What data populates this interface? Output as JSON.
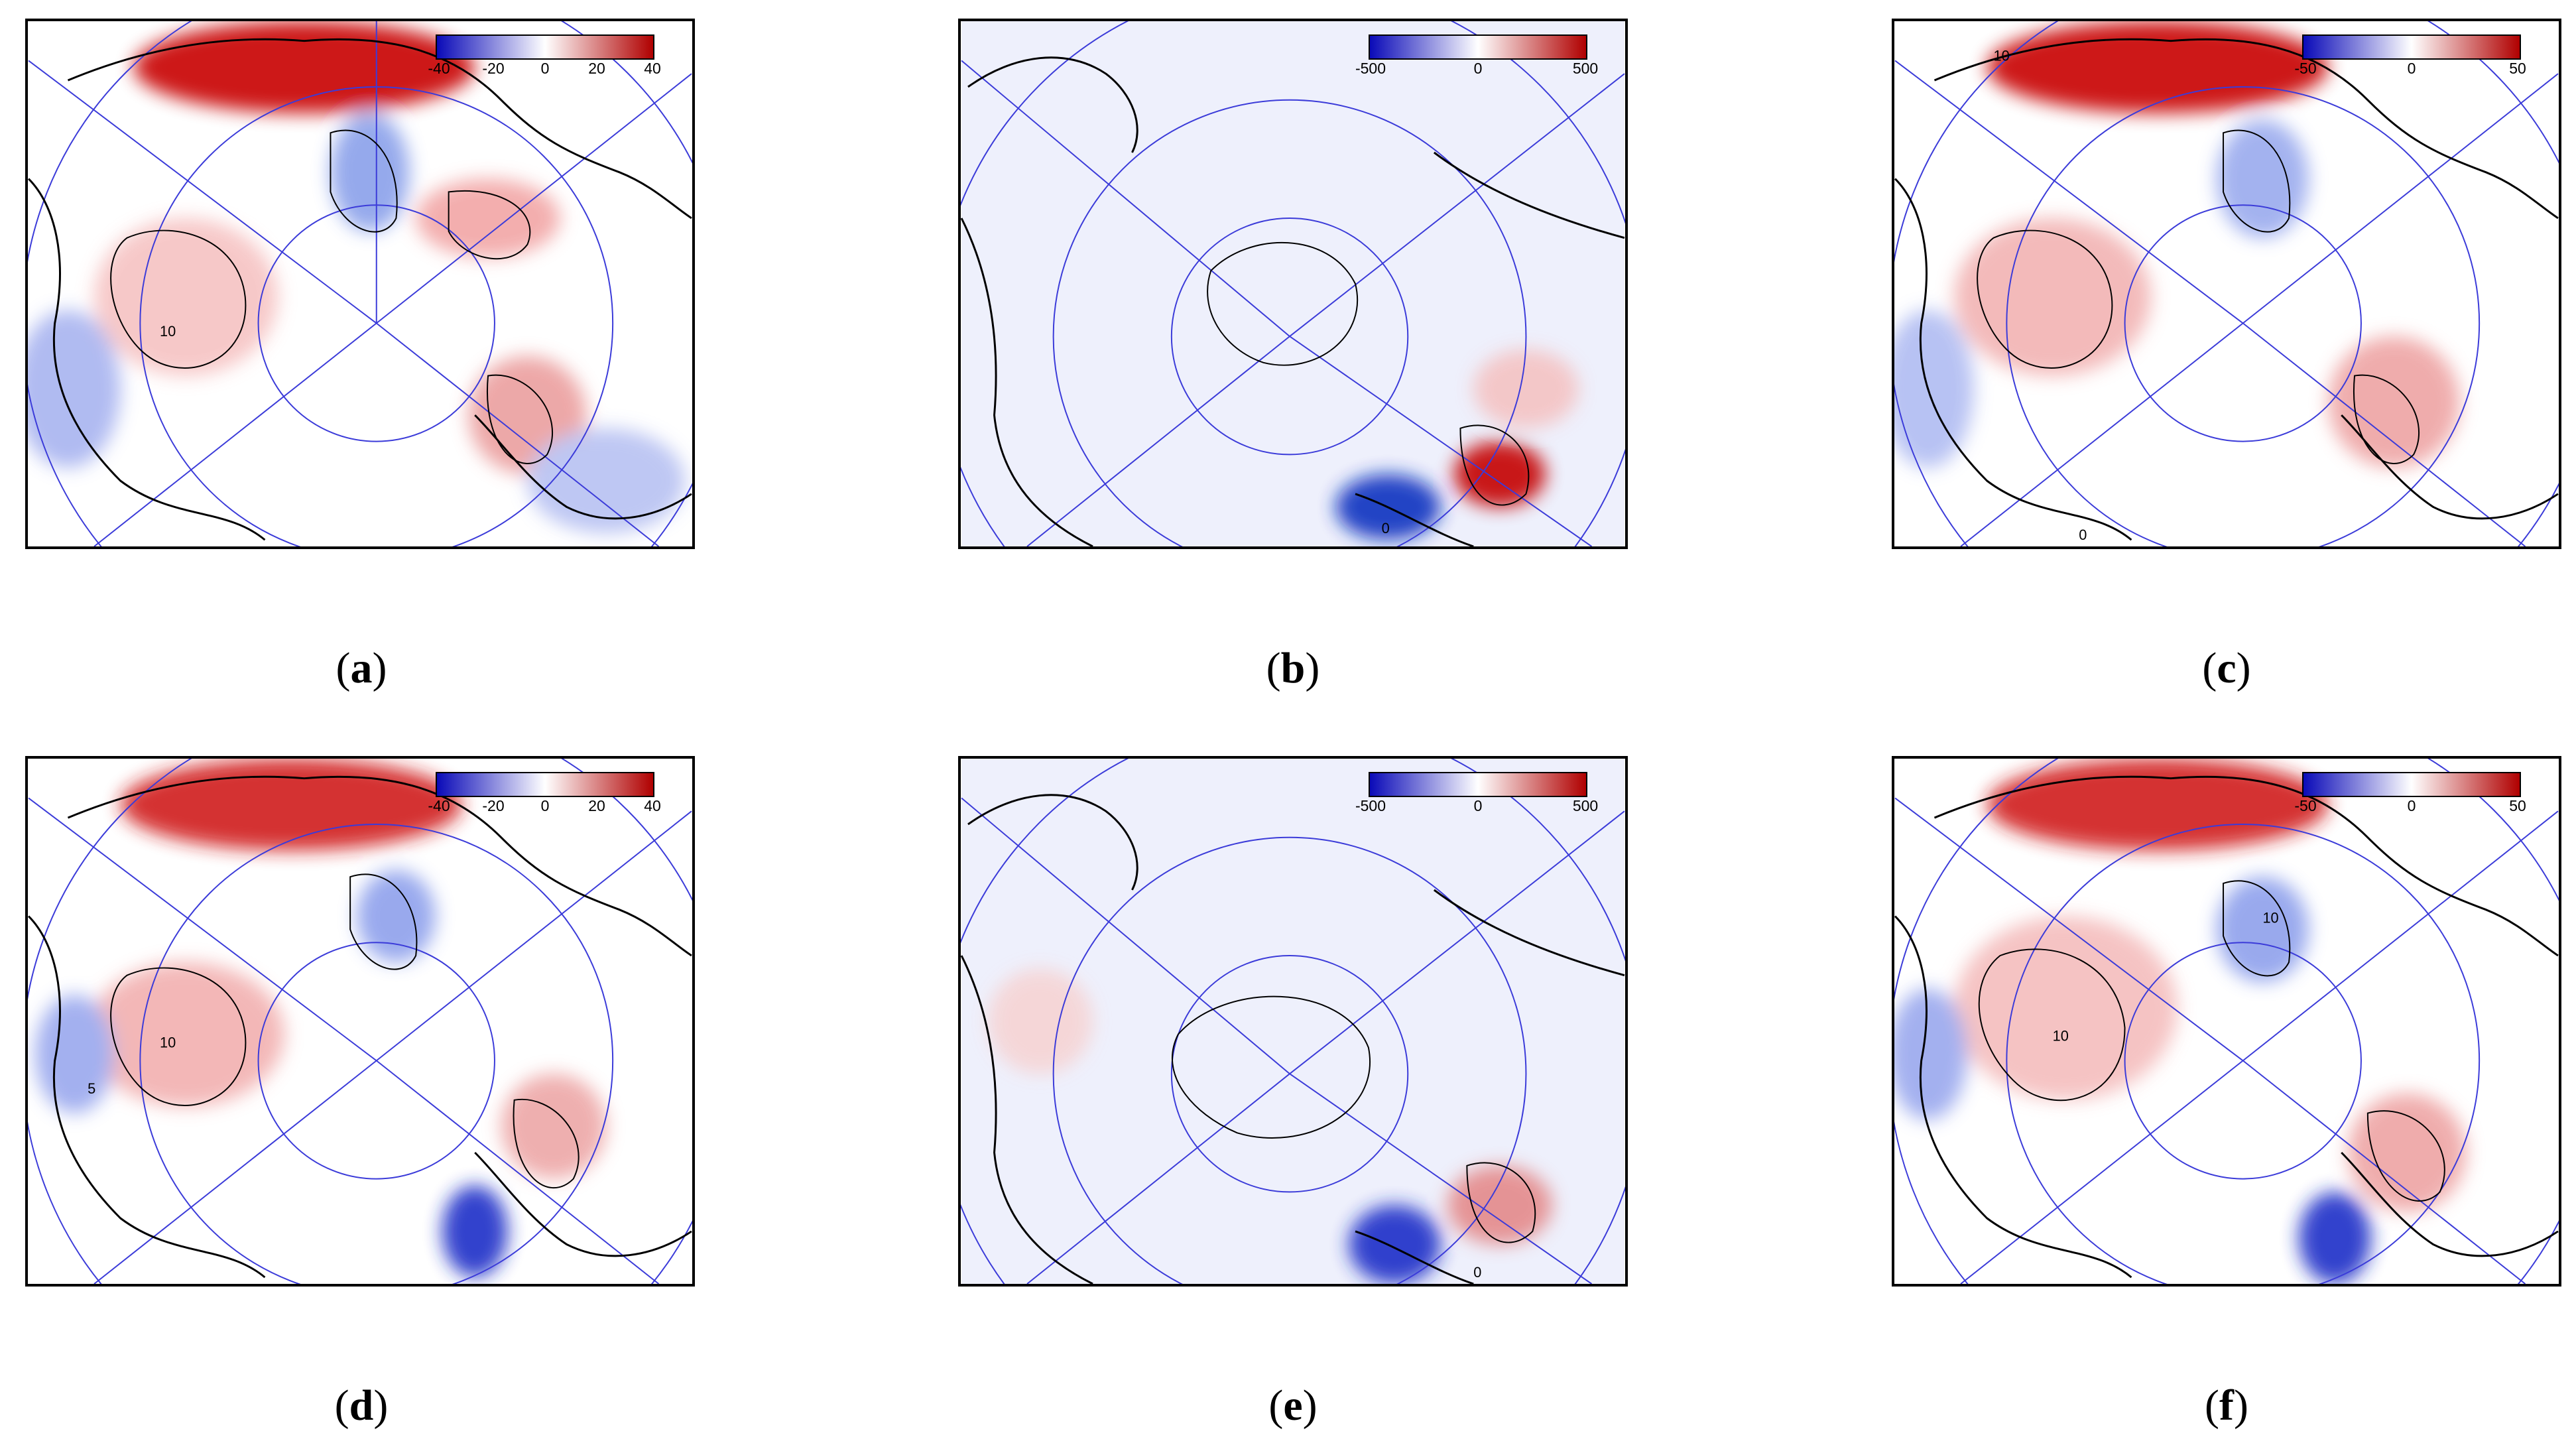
{
  "colors": {
    "negative": "#1a1ad6",
    "zero": "#ffffff",
    "positive": "#d41414",
    "graticule": "#3b3bd9",
    "coastline": "#000000"
  },
  "panels": [
    {
      "id": "a",
      "caption": "a",
      "colorbar_ticks": [
        "-40",
        "-20",
        "0",
        "20",
        "40"
      ],
      "contour_labels": [
        "10"
      ]
    },
    {
      "id": "b",
      "caption": "b",
      "colorbar_ticks": [
        "-500",
        "0",
        "500"
      ],
      "contour_labels": [
        "0"
      ]
    },
    {
      "id": "c",
      "caption": "c",
      "colorbar_ticks": [
        "-50",
        "0",
        "50"
      ],
      "contour_labels": [
        "10",
        "0"
      ]
    },
    {
      "id": "d",
      "caption": "d",
      "colorbar_ticks": [
        "-40",
        "-20",
        "0",
        "20",
        "40"
      ],
      "contour_labels": [
        "5",
        "10"
      ]
    },
    {
      "id": "e",
      "caption": "e",
      "colorbar_ticks": [
        "-500",
        "0",
        "500"
      ],
      "contour_labels": [
        "0"
      ]
    },
    {
      "id": "f",
      "caption": "f",
      "colorbar_ticks": [
        "-50",
        "0",
        "50"
      ],
      "contour_labels": [
        "10",
        "10"
      ]
    }
  ]
}
